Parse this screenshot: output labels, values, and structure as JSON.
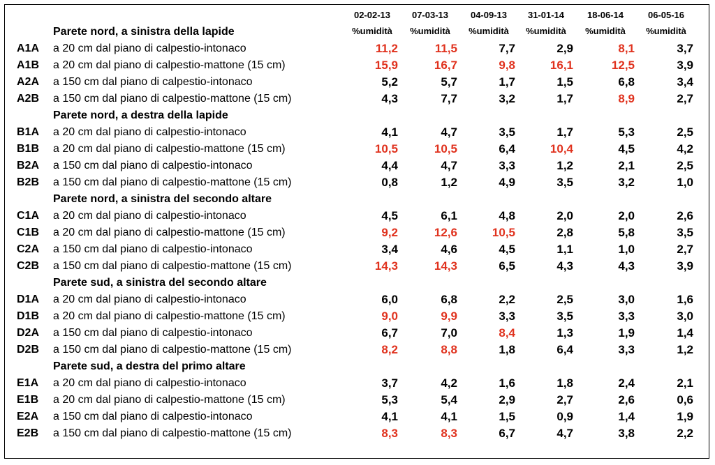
{
  "table": {
    "header": {
      "dates": [
        "02-02-13",
        "07-03-13",
        "04-09-13",
        "31-01-14",
        "18-06-14",
        "06-05-16"
      ],
      "unit": "%umidità"
    },
    "value_color": "#000000",
    "highlight_color": "#e0321e",
    "groups": [
      {
        "title": "Parete nord, a sinistra della lapide",
        "rows": [
          {
            "code": "A1A",
            "location": "a 20 cm dal piano di calpestio-intonaco",
            "values": [
              "11,2",
              "11,5",
              "7,7",
              "2,9",
              "8,1",
              "3,7"
            ],
            "highlight": [
              true,
              true,
              false,
              false,
              true,
              false
            ]
          },
          {
            "code": "A1B",
            "location": "a 20 cm dal piano di calpestio-mattone (15 cm)",
            "values": [
              "15,9",
              "16,7",
              "9,8",
              "16,1",
              "12,5",
              "3,9"
            ],
            "highlight": [
              true,
              true,
              true,
              true,
              true,
              false
            ]
          },
          {
            "code": "A2A",
            "location": "a 150 cm dal piano di calpestio-intonaco",
            "values": [
              "5,2",
              "5,7",
              "1,7",
              "1,5",
              "6,8",
              "3,4"
            ],
            "highlight": [
              false,
              false,
              false,
              false,
              false,
              false
            ]
          },
          {
            "code": "A2B",
            "location": "a 150 cm dal piano di calpestio-mattone (15 cm)",
            "values": [
              "4,3",
              "7,7",
              "3,2",
              "1,7",
              "8,9",
              "2,7"
            ],
            "highlight": [
              false,
              false,
              false,
              false,
              true,
              false
            ]
          }
        ]
      },
      {
        "title": "Parete nord, a destra della lapide",
        "rows": [
          {
            "code": "B1A",
            "location": "a 20 cm dal piano di calpestio-intonaco",
            "values": [
              "4,1",
              "4,7",
              "3,5",
              "1,7",
              "5,3",
              "2,5"
            ],
            "highlight": [
              false,
              false,
              false,
              false,
              false,
              false
            ]
          },
          {
            "code": "B1B",
            "location": "a 20 cm dal piano di calpestio-mattone (15 cm)",
            "values": [
              "10,5",
              "10,5",
              "6,4",
              "10,4",
              "4,5",
              "4,2"
            ],
            "highlight": [
              true,
              true,
              false,
              true,
              false,
              false
            ]
          },
          {
            "code": "B2A",
            "location": "a 150 cm dal piano di calpestio-intonaco",
            "values": [
              "4,4",
              "4,7",
              "3,3",
              "1,2",
              "2,1",
              "2,5"
            ],
            "highlight": [
              false,
              false,
              false,
              false,
              false,
              false
            ]
          },
          {
            "code": "B2B",
            "location": "a 150 cm dal piano di calpestio-mattone (15 cm)",
            "values": [
              "0,8",
              "1,2",
              "4,9",
              "3,5",
              "3,2",
              "1,0"
            ],
            "highlight": [
              false,
              false,
              false,
              false,
              false,
              false
            ]
          }
        ]
      },
      {
        "title": "Parete nord, a sinistra del secondo altare",
        "rows": [
          {
            "code": "C1A",
            "location": "a 20 cm dal piano di calpestio-intonaco",
            "values": [
              "4,5",
              "6,1",
              "4,8",
              "2,0",
              "2,0",
              "2,6"
            ],
            "highlight": [
              false,
              false,
              false,
              false,
              false,
              false
            ]
          },
          {
            "code": "C1B",
            "location": "a 20 cm dal piano di calpestio-mattone (15 cm)",
            "values": [
              "9,2",
              "12,6",
              "10,5",
              "2,8",
              "5,8",
              "3,5"
            ],
            "highlight": [
              true,
              true,
              true,
              false,
              false,
              false
            ]
          },
          {
            "code": "C2A",
            "location": "a 150 cm dal piano di calpestio-intonaco",
            "values": [
              "3,4",
              "4,6",
              "4,5",
              "1,1",
              "1,0",
              "2,7"
            ],
            "highlight": [
              false,
              false,
              false,
              false,
              false,
              false
            ]
          },
          {
            "code": "C2B",
            "location": "a 150 cm dal piano di calpestio-mattone (15 cm)",
            "values": [
              "14,3",
              "14,3",
              "6,5",
              "4,3",
              "4,3",
              "3,9"
            ],
            "highlight": [
              true,
              true,
              false,
              false,
              false,
              false
            ]
          }
        ]
      },
      {
        "title": "Parete sud, a sinistra del secondo altare",
        "rows": [
          {
            "code": "D1A",
            "location": "a 20 cm dal piano di calpestio-intonaco",
            "values": [
              "6,0",
              "6,8",
              "2,2",
              "2,5",
              "3,0",
              "1,6"
            ],
            "highlight": [
              false,
              false,
              false,
              false,
              false,
              false
            ]
          },
          {
            "code": "D1B",
            "location": "a 20 cm dal piano di calpestio-mattone (15 cm)",
            "values": [
              "9,0",
              "9,9",
              "3,3",
              "3,5",
              "3,3",
              "3,0"
            ],
            "highlight": [
              true,
              true,
              false,
              false,
              false,
              false
            ]
          },
          {
            "code": "D2A",
            "location": "a 150 cm dal piano di calpestio-intonaco",
            "values": [
              "6,7",
              "7,0",
              "8,4",
              "1,3",
              "1,9",
              "1,4"
            ],
            "highlight": [
              false,
              false,
              true,
              false,
              false,
              false
            ]
          },
          {
            "code": "D2B",
            "location": "a 150 cm dal piano di calpestio-mattone (15 cm)",
            "values": [
              "8,2",
              "8,8",
              "1,8",
              "6,4",
              "3,3",
              "1,2"
            ],
            "highlight": [
              true,
              true,
              false,
              false,
              false,
              false
            ]
          }
        ]
      },
      {
        "title": "Parete sud, a destra del primo altare",
        "rows": [
          {
            "code": "E1A",
            "location": "a 20 cm dal piano di calpestio-intonaco",
            "values": [
              "3,7",
              "4,2",
              "1,6",
              "1,8",
              "2,4",
              "2,1"
            ],
            "highlight": [
              false,
              false,
              false,
              false,
              false,
              false
            ]
          },
          {
            "code": "E1B",
            "location": "a 20 cm dal piano di calpestio-mattone (15 cm)",
            "values": [
              "5,3",
              "5,4",
              "2,9",
              "2,7",
              "2,6",
              "0,6"
            ],
            "highlight": [
              false,
              false,
              false,
              false,
              false,
              false
            ]
          },
          {
            "code": "E2A",
            "location": "a 150 cm dal piano di calpestio-intonaco",
            "values": [
              "4,1",
              "4,1",
              "1,5",
              "0,9",
              "1,4",
              "1,9"
            ],
            "highlight": [
              false,
              false,
              false,
              false,
              false,
              false
            ]
          },
          {
            "code": "E2B",
            "location": "a 150 cm dal piano di calpestio-mattone (15 cm)",
            "values": [
              "8,3",
              "8,3",
              "6,7",
              "4,7",
              "3,8",
              "2,2"
            ],
            "highlight": [
              true,
              true,
              false,
              false,
              false,
              false
            ]
          }
        ]
      }
    ]
  }
}
